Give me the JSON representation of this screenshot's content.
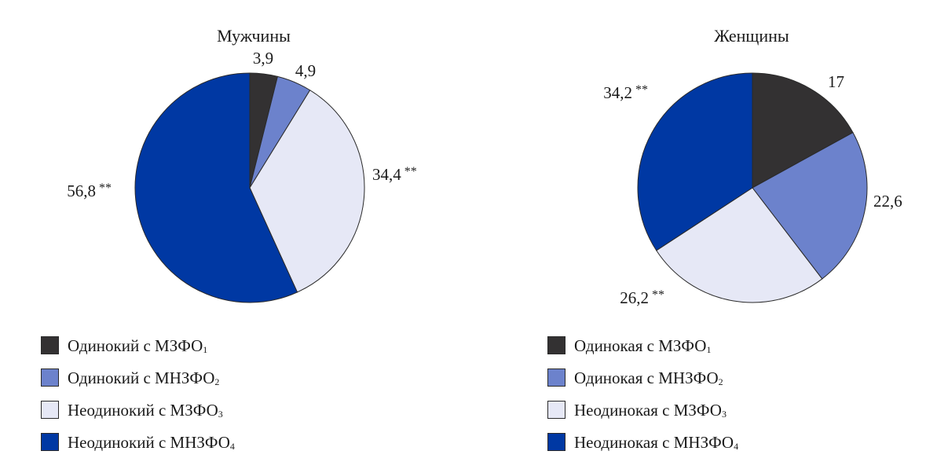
{
  "colors": {
    "s1": "#333132",
    "s2": "#6c82cc",
    "s3": "#e6e8f6",
    "s4": "#0038a3",
    "stroke": "#2a2a2a"
  },
  "chart_data": [
    {
      "type": "pie",
      "title": "Мужчины",
      "slices": [
        {
          "value": 3.9,
          "label": "3,9",
          "stars": ""
        },
        {
          "value": 4.9,
          "label": "4,9",
          "stars": ""
        },
        {
          "value": 34.4,
          "label": "34,4",
          "stars": "**"
        },
        {
          "value": 56.8,
          "label": "56,8",
          "stars": "**"
        }
      ],
      "legend": [
        {
          "text": "Одинокий с МЗФО",
          "sub": "1"
        },
        {
          "text": "Одинокий с МНЗФО",
          "sub": "2"
        },
        {
          "text": "Неодинокий с МЗФО",
          "sub": "3"
        },
        {
          "text": "Неодинокий с МНЗФО",
          "sub": "4"
        }
      ]
    },
    {
      "type": "pie",
      "title": "Женщины",
      "slices": [
        {
          "value": 17,
          "label": "17",
          "stars": ""
        },
        {
          "value": 22.6,
          "label": "22,6",
          "stars": ""
        },
        {
          "value": 26.2,
          "label": "26,2",
          "stars": "**"
        },
        {
          "value": 34.2,
          "label": "34,2",
          "stars": "**"
        }
      ],
      "legend": [
        {
          "text": "Одинокая с МЗФО",
          "sub": "1"
        },
        {
          "text": "Одинокая с МНЗФО",
          "sub": "2"
        },
        {
          "text": "Неодинокая с МЗФО",
          "sub": "3"
        },
        {
          "text": "Неодинокая с МНЗФО",
          "sub": "4"
        }
      ]
    }
  ]
}
